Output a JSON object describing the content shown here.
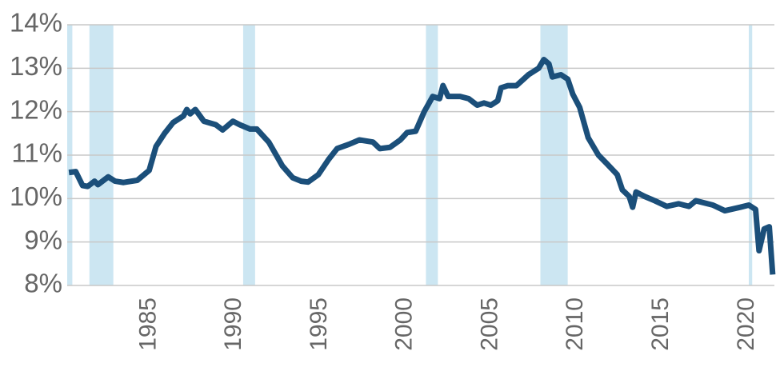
{
  "chart_data": {
    "type": "line",
    "x": [
      1980.3,
      1980.7,
      1981.1,
      1981.4,
      1981.8,
      1982.0,
      1982.6,
      1983.0,
      1983.5,
      1984.3,
      1985.0,
      1985.4,
      1985.9,
      1986.4,
      1987.0,
      1987.2,
      1987.4,
      1987.7,
      1988.2,
      1988.9,
      1989.3,
      1989.9,
      1990.3,
      1990.9,
      1991.3,
      1992.0,
      1992.8,
      1993.4,
      1993.9,
      1994.3,
      1994.9,
      1995.5,
      1996.0,
      1996.7,
      1997.3,
      1998.1,
      1998.5,
      1999.1,
      1999.7,
      2000.1,
      2000.6,
      2001.1,
      2001.6,
      2002.0,
      2002.2,
      2002.5,
      2003.2,
      2003.7,
      2004.2,
      2004.6,
      2005.0,
      2005.4,
      2005.6,
      2006.0,
      2006.5,
      2007.2,
      2007.8,
      2008.1,
      2008.4,
      2008.6,
      2009.1,
      2009.5,
      2009.8,
      2010.2,
      2010.7,
      2011.3,
      2011.8,
      2012.4,
      2012.7,
      2013.1,
      2013.3,
      2013.5,
      2014.0,
      2014.6,
      2015.3,
      2016.0,
      2016.6,
      2017.0,
      2018.0,
      2018.7,
      2019.6,
      2020.1,
      2020.5,
      2020.7,
      2021.0,
      2021.3,
      2021.5
    ],
    "series": [
      {
        "color": "#1b4f7a",
        "values": [
          10.6,
          10.62,
          10.3,
          10.28,
          10.4,
          10.32,
          10.5,
          10.4,
          10.37,
          10.42,
          10.65,
          11.2,
          11.5,
          11.75,
          11.9,
          12.05,
          11.95,
          12.05,
          11.78,
          11.7,
          11.58,
          11.78,
          11.7,
          11.6,
          11.6,
          11.3,
          10.75,
          10.48,
          10.4,
          10.38,
          10.55,
          10.9,
          11.15,
          11.25,
          11.35,
          11.3,
          11.15,
          11.18,
          11.35,
          11.52,
          11.55,
          12.0,
          12.35,
          12.3,
          12.6,
          12.35,
          12.35,
          12.3,
          12.15,
          12.2,
          12.15,
          12.25,
          12.55,
          12.6,
          12.6,
          12.85,
          13.0,
          13.2,
          13.1,
          12.8,
          12.85,
          12.75,
          12.4,
          12.1,
          11.4,
          11.0,
          10.8,
          10.55,
          10.2,
          10.05,
          9.8,
          10.15,
          10.05,
          9.95,
          9.82,
          9.88,
          9.82,
          9.95,
          9.85,
          9.72,
          9.8,
          9.85,
          9.75,
          8.8,
          9.3,
          9.35,
          8.25
        ]
      }
    ],
    "recessions": [
      [
        1980.0,
        1980.5
      ],
      [
        1981.5,
        1982.9
      ],
      [
        1990.5,
        1991.2
      ],
      [
        2001.2,
        2001.9
      ],
      [
        2007.9,
        2009.5
      ],
      [
        2020.1,
        2020.3
      ]
    ],
    "recession_color": "#cce6f2",
    "xlim": [
      1980.2,
      2021.6
    ],
    "xticks": [
      1985,
      1990,
      1995,
      2000,
      2005,
      2010,
      2015,
      2020
    ],
    "ylim": [
      8,
      14
    ],
    "yticks": [
      {
        "value": 8,
        "label": "8%"
      },
      {
        "value": 9,
        "label": "9%"
      },
      {
        "value": 10,
        "label": "10%"
      },
      {
        "value": 11,
        "label": "11%"
      },
      {
        "value": 12,
        "label": "12%"
      },
      {
        "value": 13,
        "label": "13%"
      },
      {
        "value": 14,
        "label": "14%"
      }
    ],
    "grid": true
  }
}
